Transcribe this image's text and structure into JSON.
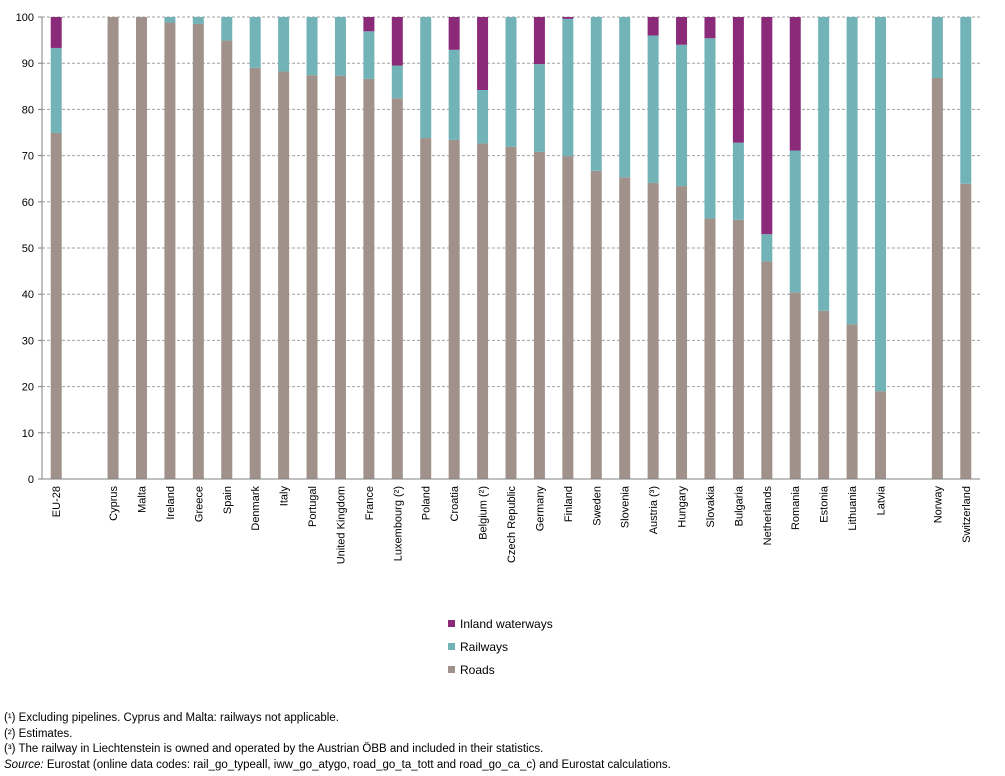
{
  "colors": {
    "inland": "#8B2A78",
    "rail": "#72B3B8",
    "roads": "#A0928A",
    "grid": "#A0A0A0",
    "axis": "#808080"
  },
  "chart_data": {
    "type": "bar",
    "stacked": true,
    "ylim": [
      0,
      100
    ],
    "yticks": [
      0,
      10,
      20,
      30,
      40,
      50,
      60,
      70,
      80,
      90,
      100
    ],
    "grid": true,
    "legend_position": "bottom-center",
    "categories": [
      "EU-28",
      "",
      "Cyprus",
      "Malta",
      "Ireland",
      "Greece",
      "Spain",
      "Denmark",
      "Italy",
      "Portugal",
      "United Kingdom",
      "France",
      "Luxembourg (²)",
      "Poland",
      "Croatia",
      "Belgium (²)",
      "Czech Republic",
      "Germany",
      "Finland",
      "Sweden",
      "Slovenia",
      "Austria (³)",
      "Hungary",
      "Slovakia",
      "Bulgaria",
      "Netherlands",
      "Romania",
      "Estonia",
      "Lithuania",
      "Latvia",
      "",
      "Norway",
      "Switzerland"
    ],
    "series": [
      {
        "name": "Roads",
        "color_key": "roads",
        "values": [
          74.9,
          null,
          100,
          100,
          98.8,
          98.5,
          94.9,
          89,
          88.2,
          87.4,
          87.3,
          86.6,
          82.4,
          73.8,
          73.4,
          72.6,
          71.9,
          70.8,
          69.9,
          66.7,
          65.3,
          64.1,
          63.4,
          56.4,
          56.1,
          47.1,
          40.4,
          36.4,
          33.5,
          19,
          null,
          86.8,
          63.9
        ]
      },
      {
        "name": "Railways",
        "color_key": "rail",
        "values": [
          18.4,
          null,
          0,
          0,
          1.2,
          1.5,
          5.1,
          11,
          11.8,
          12.6,
          12.7,
          10.3,
          7.1,
          26.2,
          19.5,
          11.6,
          28.1,
          19,
          29.7,
          33.3,
          34.7,
          31.9,
          30.6,
          39,
          16.7,
          5.9,
          30.7,
          63.6,
          66.5,
          81,
          null,
          13.2,
          36.1
        ]
      },
      {
        "name": "Inland waterways",
        "color_key": "inland",
        "values": [
          6.7,
          null,
          0,
          0,
          0,
          0,
          0,
          0,
          0,
          0,
          0,
          3.1,
          10.5,
          0,
          7.1,
          15.8,
          0,
          10.2,
          0.4,
          0,
          0,
          4,
          6,
          4.6,
          27.2,
          47,
          28.9,
          0,
          0,
          0,
          null,
          0,
          0
        ]
      }
    ],
    "legend": [
      "Inland waterways",
      "Railways",
      "Roads"
    ]
  },
  "footnotes": [
    "(¹) Excluding pipelines. Cyprus and Malta: railways not applicable.",
    "(²) Estimates.",
    "(³) The railway in Liechtenstein is owned and operated by the Austrian ÖBB and included in their statistics."
  ],
  "source": {
    "label": "Source:",
    "text": " Eurostat (online data codes: rail_go_typeall, iww_go_atygo, road_go_ta_tott and road_go_ca_c) and Eurostat calculations."
  }
}
